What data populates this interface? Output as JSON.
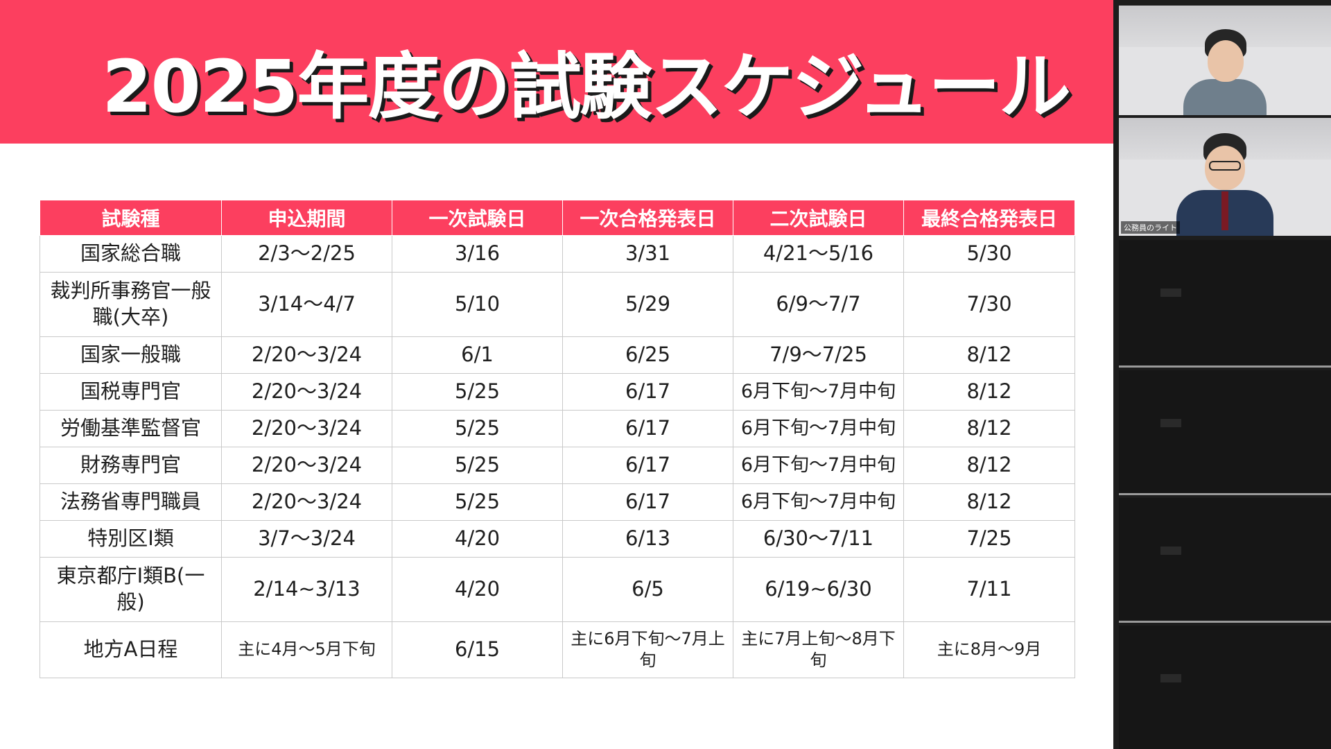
{
  "slide": {
    "title": "2025年度の試験スケジュール",
    "accent_color": "#fc3f5f"
  },
  "table": {
    "headers": [
      "試験種",
      "申込期間",
      "一次試験日",
      "一次合格発表日",
      "二次試験日",
      "最終合格発表日"
    ],
    "rows": [
      [
        "国家総合職",
        "2/3〜2/25",
        "3/16",
        "3/31",
        "4/21〜5/16",
        "5/30"
      ],
      [
        "裁判所事務官一般職(大卒)",
        "3/14〜4/7",
        "5/10",
        "5/29",
        "6/9〜7/7",
        "7/30"
      ],
      [
        "国家一般職",
        "2/20〜3/24",
        "6/1",
        "6/25",
        "7/9〜7/25",
        "8/12"
      ],
      [
        "国税専門官",
        "2/20〜3/24",
        "5/25",
        "6/17",
        "6月下旬〜7月中旬",
        "8/12"
      ],
      [
        "労働基準監督官",
        "2/20〜3/24",
        "5/25",
        "6/17",
        "6月下旬〜7月中旬",
        "8/12"
      ],
      [
        "財務専門官",
        "2/20〜3/24",
        "5/25",
        "6/17",
        "6月下旬〜7月中旬",
        "8/12"
      ],
      [
        "法務省専門職員",
        "2/20〜3/24",
        "5/25",
        "6/17",
        "6月下旬〜7月中旬",
        "8/12"
      ],
      [
        "特別区Ⅰ類",
        "3/7〜3/24",
        "4/20",
        "6/13",
        "6/30〜7/11",
        "7/25"
      ],
      [
        "東京都庁Ⅰ類B(一般)",
        "2/14~3/13",
        "4/20",
        "6/5",
        "6/19~6/30",
        "7/11"
      ],
      [
        "地方A日程",
        "主に4月〜5月下旬",
        "6/15",
        "主に6月下旬〜7月上旬",
        "主に7月上旬〜8月下旬",
        "主に8月〜9月"
      ]
    ]
  },
  "participants": {
    "speaker_name": "公務員のライト"
  }
}
